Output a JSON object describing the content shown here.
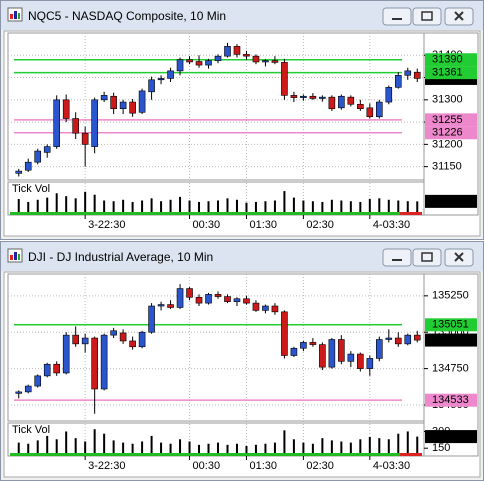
{
  "chart_data": [
    {
      "type": "candlestick",
      "title": "NQC5 - NASDAQ Composite, 10 Min",
      "categories": [
        null,
        null,
        null,
        null,
        null,
        null,
        null,
        "3-22:30",
        null,
        null,
        null,
        null,
        null,
        null,
        null,
        null,
        null,
        null,
        "00:30",
        null,
        null,
        null,
        null,
        null,
        "01:30",
        null,
        null,
        null,
        null,
        null,
        "02:30",
        null,
        null,
        null,
        null,
        null,
        null,
        "4-03:30",
        null,
        null,
        null,
        null,
        null
      ],
      "open": [
        31135,
        31142,
        31160,
        31182,
        31195,
        31300,
        31258,
        31225,
        31195,
        31300,
        31308,
        31280,
        31295,
        31272,
        31318,
        31345,
        31348,
        31365,
        31390,
        31386,
        31378,
        31388,
        31398,
        31420,
        31402,
        31398,
        31385,
        31388,
        31384,
        31310,
        31305,
        31308,
        31303,
        31306,
        31282,
        31306,
        31290,
        31282,
        31262,
        31295,
        31328,
        31355,
        31362
      ],
      "high": [
        31145,
        31168,
        31190,
        31200,
        31310,
        31312,
        31272,
        31240,
        31305,
        31318,
        31316,
        31300,
        31302,
        31325,
        31352,
        31355,
        31372,
        31395,
        31398,
        31400,
        31392,
        31402,
        31428,
        31425,
        31410,
        31402,
        31392,
        31398,
        31392,
        31318,
        31312,
        31315,
        31310,
        31310,
        31312,
        31310,
        31300,
        31292,
        31300,
        31332,
        31362,
        31372,
        31370
      ],
      "low": [
        31128,
        31138,
        31155,
        31170,
        31190,
        31250,
        31212,
        31150,
        31180,
        31295,
        31268,
        31268,
        31262,
        31268,
        31300,
        31335,
        31340,
        31355,
        31380,
        31372,
        31370,
        31382,
        31395,
        31395,
        31390,
        31380,
        31375,
        31380,
        31300,
        31295,
        31298,
        31300,
        31296,
        31275,
        31278,
        31285,
        31275,
        31258,
        31258,
        31290,
        31325,
        31345,
        31340
      ],
      "close": [
        31140,
        31160,
        31185,
        31195,
        31300,
        31258,
        31225,
        31200,
        31300,
        31310,
        31280,
        31295,
        31270,
        31320,
        31345,
        31348,
        31365,
        31390,
        31385,
        31378,
        31388,
        31398,
        31420,
        31402,
        31398,
        31385,
        31388,
        31384,
        31310,
        31305,
        31308,
        31303,
        31306,
        31280,
        31308,
        31290,
        31280,
        31262,
        31295,
        31328,
        31355,
        31365,
        31348
      ],
      "up_color": "#2a55cc",
      "down_color": "#cc1a1a",
      "ylim": [
        31120,
        31450
      ],
      "yticks": [
        31150,
        31200,
        31250,
        31300,
        31350,
        31400
      ],
      "grid": true,
      "levels": [
        {
          "value": 31390,
          "color": "#22cc33"
        },
        {
          "value": 31361,
          "color": "#22cc33"
        },
        {
          "value": 31255,
          "color": "#ee88cc"
        },
        {
          "value": 31226,
          "color": "#ee88cc"
        }
      ],
      "volume": {
        "label": "Tick Vol",
        "ylim": [
          0,
          400
        ],
        "color": "#000000",
        "values": [
          220,
          180,
          210,
          240,
          300,
          260,
          230,
          320,
          280,
          200,
          190,
          210,
          180,
          200,
          230,
          190,
          210,
          250,
          200,
          180,
          190,
          200,
          230,
          210,
          170,
          180,
          190,
          200,
          330,
          240,
          200,
          190,
          180,
          210,
          200,
          190,
          180,
          220,
          230,
          210,
          200,
          190,
          188
        ]
      }
    },
    {
      "type": "candlestick",
      "title": "DJI - DJ Industrial Average, 10 Min",
      "categories": [
        null,
        null,
        null,
        null,
        null,
        null,
        null,
        "3-22:30",
        null,
        null,
        null,
        null,
        null,
        null,
        null,
        null,
        null,
        null,
        "00:30",
        null,
        null,
        null,
        null,
        null,
        "01:30",
        null,
        null,
        null,
        null,
        null,
        "02:30",
        null,
        null,
        null,
        null,
        null,
        null,
        "4-03:30",
        null,
        null,
        null,
        null,
        null
      ],
      "open": [
        134580,
        134590,
        134630,
        134700,
        134780,
        134720,
        134980,
        134920,
        134960,
        134610,
        134980,
        134995,
        134940,
        134900,
        135000,
        135180,
        135190,
        135170,
        135300,
        135240,
        135200,
        135260,
        135245,
        135210,
        135230,
        135200,
        135150,
        135180,
        135140,
        134840,
        134890,
        134930,
        134915,
        134760,
        134950,
        134800,
        134850,
        134750,
        134820,
        134950,
        134960,
        134920,
        134980
      ],
      "high": [
        134600,
        134640,
        134710,
        134790,
        134800,
        135000,
        135040,
        134990,
        134970,
        134990,
        135030,
        135020,
        134970,
        135010,
        135200,
        135210,
        135220,
        135330,
        135310,
        135260,
        135270,
        135280,
        135260,
        135240,
        135250,
        135220,
        135190,
        135200,
        135150,
        134900,
        134940,
        134960,
        134930,
        134960,
        134980,
        134870,
        134860,
        134840,
        134970,
        135020,
        135000,
        134990,
        135010
      ],
      "low": [
        134545,
        134580,
        134620,
        134690,
        134700,
        134710,
        134900,
        134860,
        134440,
        134600,
        134960,
        134920,
        134880,
        134890,
        134990,
        135150,
        135160,
        135160,
        135220,
        135180,
        135190,
        135230,
        135200,
        135180,
        135190,
        135140,
        135130,
        135120,
        134820,
        134830,
        134870,
        134900,
        134740,
        134750,
        134780,
        134760,
        134730,
        134700,
        134800,
        134930,
        134900,
        134910,
        134930
      ],
      "close": [
        134590,
        134630,
        134700,
        134780,
        134720,
        134980,
        134920,
        134960,
        134610,
        134980,
        135010,
        134940,
        134900,
        135000,
        135180,
        135190,
        135170,
        135300,
        135240,
        135200,
        135260,
        135245,
        135210,
        135230,
        135200,
        135150,
        135180,
        135140,
        134840,
        134890,
        134930,
        134915,
        134760,
        134950,
        134800,
        134850,
        134750,
        134820,
        134950,
        134960,
        134920,
        134980,
        134946
      ],
      "up_color": "#2a55cc",
      "down_color": "#cc1a1a",
      "ylim": [
        134390,
        135400
      ],
      "yticks": [
        134500,
        134750,
        135000,
        135250
      ],
      "grid": true,
      "levels": [
        {
          "value": 135051,
          "color": "#22cc33"
        },
        {
          "value": 134533,
          "color": "#ee88cc"
        }
      ],
      "volume": {
        "label": "Tick Vol",
        "ylim": [
          80,
          340
        ],
        "yticks": [
          150,
          300
        ],
        "color": "#000000",
        "values": [
          200,
          190,
          220,
          260,
          230,
          300,
          240,
          210,
          320,
          280,
          220,
          200,
          190,
          210,
          260,
          200,
          190,
          230,
          210,
          180,
          190,
          200,
          180,
          190,
          170,
          180,
          190,
          200,
          310,
          230,
          200,
          190,
          240,
          220,
          210,
          200,
          230,
          250,
          240,
          230,
          280,
          300,
          254
        ]
      }
    }
  ]
}
